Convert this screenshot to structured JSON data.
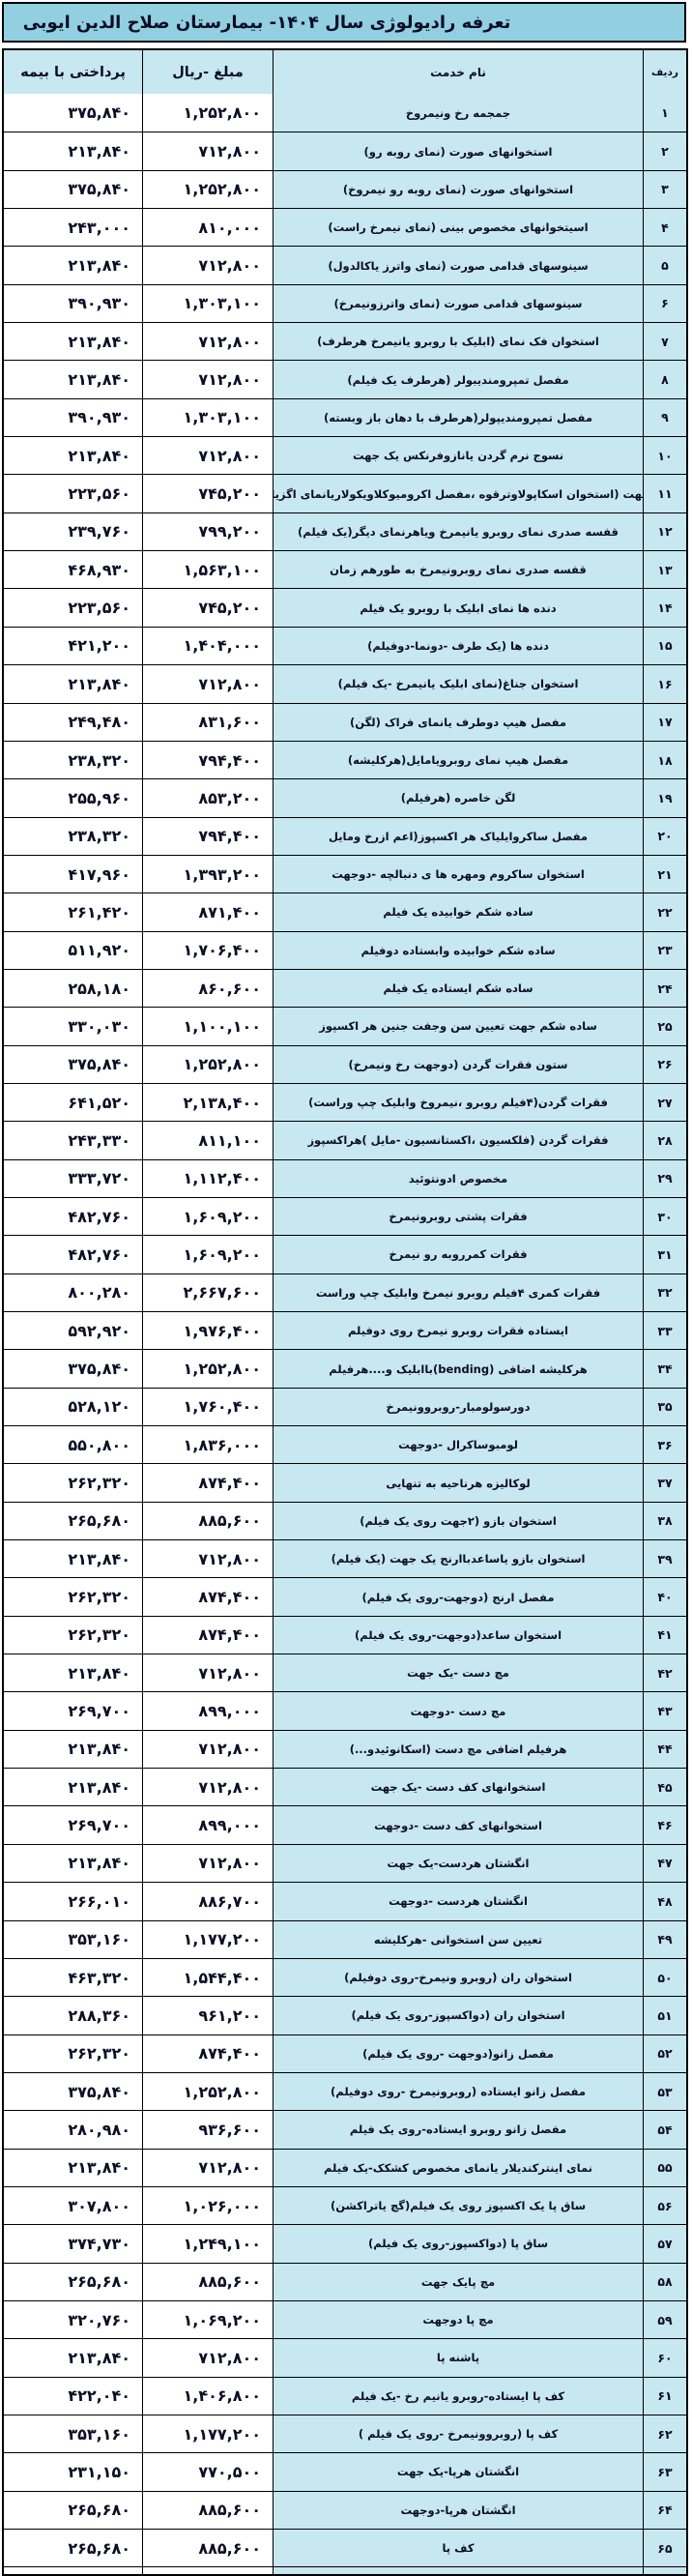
{
  "title": "تعرفه رادیولوژی سال ۱۴۰۴- بیمارستان صلاح الدین ایوبی",
  "columns": {
    "row_no": "ردیف",
    "service": "نام خدمت",
    "amount": "مبلغ -ریال",
    "insurance": "پرداختی با بیمه"
  },
  "colors": {
    "title_bg": "#92cfe0",
    "cell_blue": "#c7e7f1",
    "cell_white": "#ffffff",
    "border": "#000000",
    "text": "#0d0d26"
  },
  "rows": [
    {
      "no": "۱",
      "service": "جمجمه رخ ونیمروخ",
      "amount": "۱,۲۵۲,۸۰۰",
      "insurance": "۳۷۵,۸۴۰"
    },
    {
      "no": "۲",
      "service": "استخوانهای صورت (نمای روبه رو)",
      "amount": "۷۱۲,۸۰۰",
      "insurance": "۲۱۳,۸۴۰"
    },
    {
      "no": "۳",
      "service": "استخوانهای صورت (نمای روبه رو نیمروخ)",
      "amount": "۱,۲۵۲,۸۰۰",
      "insurance": "۳۷۵,۸۴۰"
    },
    {
      "no": "۴",
      "service": "اسیتخوانهای مخصوص بینی (نمای نیمرخ راست)",
      "amount": "۸۱۰,۰۰۰",
      "insurance": "۲۴۳,۰۰۰"
    },
    {
      "no": "۵",
      "service": "سینوسهای قدامی صورت (نمای واترز یاکالدول)",
      "amount": "۷۱۲,۸۰۰",
      "insurance": "۲۱۳,۸۴۰"
    },
    {
      "no": "۶",
      "service": "سینوسهای قدامی صورت (نمای واترزونیمرخ)",
      "amount": "۱,۳۰۳,۱۰۰",
      "insurance": "۳۹۰,۹۳۰"
    },
    {
      "no": "۷",
      "service": "استخوان فک نمای (ابلیک با روبرو یانیمرخ هرطرف)",
      "amount": "۷۱۲,۸۰۰",
      "insurance": "۲۱۳,۸۴۰"
    },
    {
      "no": "۸",
      "service": "مفصل تمپرومندیبولر (هرطرف یک فیلم)",
      "amount": "۷۱۲,۸۰۰",
      "insurance": "۲۱۳,۸۴۰"
    },
    {
      "no": "۹",
      "service": "مفصل تمپرومندیپولر(هرطرف با دهان باز وبسته)",
      "amount": "۱,۳۰۳,۱۰۰",
      "insurance": "۳۹۰,۹۳۰"
    },
    {
      "no": "۱۰",
      "service": "نسوج نرم گردن یانازوفرنکس یک جهت",
      "amount": "۷۱۲,۸۰۰",
      "insurance": "۲۱۳,۸۴۰"
    },
    {
      "no": "۱۱",
      "service": "شانه یک جهت (استخوان اسکاپولاوترقوه ،مفصل اکرومیوکلاویکولاریانمای اگزیلار یانیمرخ",
      "amount": "۷۴۵,۲۰۰",
      "insurance": "۲۲۳,۵۶۰"
    },
    {
      "no": "۱۲",
      "service": "قفسه صدری نمای روبرو یانیمرخ ویاهرنمای دیگر(یک فیلم)",
      "amount": "۷۹۹,۲۰۰",
      "insurance": "۲۳۹,۷۶۰"
    },
    {
      "no": "۱۳",
      "service": "قفسه صدری نمای روبرونیمرخ به طورهم زمان",
      "amount": "۱,۵۶۳,۱۰۰",
      "insurance": "۴۶۸,۹۳۰"
    },
    {
      "no": "۱۴",
      "service": "دنده ها نمای ابلیک با روبرو یک فیلم",
      "amount": "۷۴۵,۲۰۰",
      "insurance": "۲۲۳,۵۶۰"
    },
    {
      "no": "۱۵",
      "service": "دنده ها (یک طرف -دونما-دوفیلم)",
      "amount": "۱,۴۰۴,۰۰۰",
      "insurance": "۴۲۱,۲۰۰"
    },
    {
      "no": "۱۶",
      "service": "استخوان جناغ(نمای ابلیک یانیمرخ -یک فیلم)",
      "amount": "۷۱۲,۸۰۰",
      "insurance": "۲۱۳,۸۴۰"
    },
    {
      "no": "۱۷",
      "service": "مفصل هیپ دوطرف یانمای فراک (لگن)",
      "amount": "۸۳۱,۶۰۰",
      "insurance": "۲۴۹,۴۸۰"
    },
    {
      "no": "۱۸",
      "service": "مفصل هیپ نمای روبرویامایل(هرکلیشه)",
      "amount": "۷۹۴,۴۰۰",
      "insurance": "۲۳۸,۳۲۰"
    },
    {
      "no": "۱۹",
      "service": "لگن خاصره (هرفیلم)",
      "amount": "۸۵۳,۲۰۰",
      "insurance": "۲۵۵,۹۶۰"
    },
    {
      "no": "۲۰",
      "service": "مفصل ساکروایلیاک هر اکسپوز(اعم ازرخ ومایل",
      "amount": "۷۹۴,۴۰۰",
      "insurance": "۲۳۸,۳۲۰"
    },
    {
      "no": "۲۱",
      "service": "استخوان ساکروم ومهره ها ی دنبالچه -دوجهت",
      "amount": "۱,۳۹۳,۲۰۰",
      "insurance": "۴۱۷,۹۶۰"
    },
    {
      "no": "۲۲",
      "service": "ساده شکم خوابیده یک فیلم",
      "amount": "۸۷۱,۴۰۰",
      "insurance": "۲۶۱,۴۲۰"
    },
    {
      "no": "۲۳",
      "service": "ساده شکم خوابیده وابستاده دوفیلم",
      "amount": "۱,۷۰۶,۴۰۰",
      "insurance": "۵۱۱,۹۲۰"
    },
    {
      "no": "۲۴",
      "service": "ساده شکم ایستاده یک فیلم",
      "amount": "۸۶۰,۶۰۰",
      "insurance": "۲۵۸,۱۸۰"
    },
    {
      "no": "۲۵",
      "service": "ساده شکم جهت تعیین سن وجفت جنین هر اکسپوز",
      "amount": "۱,۱۰۰,۱۰۰",
      "insurance": "۳۳۰,۰۳۰"
    },
    {
      "no": "۲۶",
      "service": "ستون فقرات گردن (دوجهت رخ ونیمرخ)",
      "amount": "۱,۲۵۲,۸۰۰",
      "insurance": "۳۷۵,۸۴۰"
    },
    {
      "no": "۲۷",
      "service": "فقرات گردن(۴فیلم روبرو ،نیمروخ وابلیک چپ وراست)",
      "amount": "۲,۱۳۸,۴۰۰",
      "insurance": "۶۴۱,۵۲۰"
    },
    {
      "no": "۲۸",
      "service": "فقرات گردن (فلکسیون ،اکستانسیون -مایل )هراکسپوز",
      "amount": "۸۱۱,۱۰۰",
      "insurance": "۲۴۳,۳۳۰"
    },
    {
      "no": "۲۹",
      "service": "مخصوص ادونتوئید",
      "amount": "۱,۱۱۲,۴۰۰",
      "insurance": "۳۳۳,۷۲۰"
    },
    {
      "no": "۳۰",
      "service": "فقرات پشتی روبرونیمرخ",
      "amount": "۱,۶۰۹,۲۰۰",
      "insurance": "۴۸۲,۷۶۰"
    },
    {
      "no": "۳۱",
      "service": "فقرات کمرروبه رو نیمرخ",
      "amount": "۱,۶۰۹,۲۰۰",
      "insurance": "۴۸۲,۷۶۰"
    },
    {
      "no": "۳۲",
      "service": "فقرات کمری ۴فیلم روبرو نیمرخ وابلیک چپ وراست",
      "amount": "۲,۶۶۷,۶۰۰",
      "insurance": "۸۰۰,۲۸۰"
    },
    {
      "no": "۳۳",
      "service": "ایستاده فقرات روبرو نیمرخ روی دوفیلم",
      "amount": "۱,۹۷۶,۴۰۰",
      "insurance": "۵۹۲,۹۲۰"
    },
    {
      "no": "۳۴",
      "service": "هرکلیشه اضافی (bending)باابلیک و....هرفیلم",
      "amount": "۱,۲۵۲,۸۰۰",
      "insurance": "۳۷۵,۸۴۰"
    },
    {
      "no": "۳۵",
      "service": "دورسولومبار-روبروونیمرخ",
      "amount": "۱,۷۶۰,۴۰۰",
      "insurance": "۵۲۸,۱۲۰"
    },
    {
      "no": "۳۶",
      "service": "لومبوساکرال -دوجهت",
      "amount": "۱,۸۳۶,۰۰۰",
      "insurance": "۵۵۰,۸۰۰"
    },
    {
      "no": "۳۷",
      "service": "لوکالیزه هرناحیه به تنهایی",
      "amount": "۸۷۴,۴۰۰",
      "insurance": "۲۶۲,۳۲۰"
    },
    {
      "no": "۳۸",
      "service": "استخوان بازو (۲جهت روی یک فیلم)",
      "amount": "۸۸۵,۶۰۰",
      "insurance": "۲۶۵,۶۸۰"
    },
    {
      "no": "۳۹",
      "service": "استخوان بازو یاساعدباارنج یک جهت (یک فیلم)",
      "amount": "۷۱۲,۸۰۰",
      "insurance": "۲۱۳,۸۴۰"
    },
    {
      "no": "۴۰",
      "service": "مفصل ارنج (دوجهت-روی یک فیلم)",
      "amount": "۸۷۴,۴۰۰",
      "insurance": "۲۶۲,۳۲۰"
    },
    {
      "no": "۴۱",
      "service": "استخوان ساعد(دوجهت-روی یک فیلم)",
      "amount": "۸۷۴,۴۰۰",
      "insurance": "۲۶۲,۳۲۰"
    },
    {
      "no": "۴۲",
      "service": "مچ دست -یک جهت",
      "amount": "۷۱۲,۸۰۰",
      "insurance": "۲۱۳,۸۴۰"
    },
    {
      "no": "۴۳",
      "service": "مچ دست -دوجهت",
      "amount": "۸۹۹,۰۰۰",
      "insurance": "۲۶۹,۷۰۰"
    },
    {
      "no": "۴۴",
      "service": "هرفیلم اضافی مچ دست (اسکانوئیدو...)",
      "amount": "۷۱۲,۸۰۰",
      "insurance": "۲۱۳,۸۴۰"
    },
    {
      "no": "۴۵",
      "service": "استخوانهای کف دست -یک جهت",
      "amount": "۷۱۲,۸۰۰",
      "insurance": "۲۱۳,۸۴۰"
    },
    {
      "no": "۴۶",
      "service": "استخوانهای کف دست -دوجهت",
      "amount": "۸۹۹,۰۰۰",
      "insurance": "۲۶۹,۷۰۰"
    },
    {
      "no": "۴۷",
      "service": "انگشتان هردست-یک جهت",
      "amount": "۷۱۲,۸۰۰",
      "insurance": "۲۱۳,۸۴۰"
    },
    {
      "no": "۴۸",
      "service": "انگشتان هردست -دوجهت",
      "amount": "۸۸۶,۷۰۰",
      "insurance": "۲۶۶,۰۱۰"
    },
    {
      "no": "۴۹",
      "service": "تعیین سن استخوانی -هرکلیشه",
      "amount": "۱,۱۷۷,۲۰۰",
      "insurance": "۳۵۳,۱۶۰"
    },
    {
      "no": "۵۰",
      "service": "استخوان ران (روبرو ونیمرخ-روی دوفیلم)",
      "amount": "۱,۵۴۴,۴۰۰",
      "insurance": "۴۶۳,۳۲۰"
    },
    {
      "no": "۵۱",
      "service": "استخوان ران (دواکسپوز-روی یک فیلم)",
      "amount": "۹۶۱,۲۰۰",
      "insurance": "۲۸۸,۳۶۰"
    },
    {
      "no": "۵۲",
      "service": "مفصل زانو(دوجهت -روی یک فیلم)",
      "amount": "۸۷۴,۴۰۰",
      "insurance": "۲۶۲,۳۲۰"
    },
    {
      "no": "۵۳",
      "service": "مفصل زانو ایستاده (روبرونیمرخ -روی دوفیلم)",
      "amount": "۱,۲۵۲,۸۰۰",
      "insurance": "۳۷۵,۸۴۰"
    },
    {
      "no": "۵۴",
      "service": "مفصل زانو روبرو ایستاده-روی یک فیلم",
      "amount": "۹۳۶,۶۰۰",
      "insurance": "۲۸۰,۹۸۰"
    },
    {
      "no": "۵۵",
      "service": "نمای اینترکندیلار یانمای مخصوص کشکک-یک فیلم",
      "amount": "۷۱۲,۸۰۰",
      "insurance": "۲۱۳,۸۴۰"
    },
    {
      "no": "۵۶",
      "service": "ساق پا یک اکسپوز روی یک فیلم(گچ یاتراکشن)",
      "amount": "۱,۰۲۶,۰۰۰",
      "insurance": "۳۰۷,۸۰۰"
    },
    {
      "no": "۵۷",
      "service": "ساق پا (دواکسپوز-روی یک فیلم)",
      "amount": "۱,۲۴۹,۱۰۰",
      "insurance": "۳۷۴,۷۳۰"
    },
    {
      "no": "۵۸",
      "service": "مچ پایک جهت",
      "amount": "۸۸۵,۶۰۰",
      "insurance": "۲۶۵,۶۸۰"
    },
    {
      "no": "۵۹",
      "service": "مچ پا دوجهت",
      "amount": "۱,۰۶۹,۲۰۰",
      "insurance": "۳۲۰,۷۶۰"
    },
    {
      "no": "۶۰",
      "service": "پاشنه پا",
      "amount": "۷۱۲,۸۰۰",
      "insurance": "۲۱۳,۸۴۰"
    },
    {
      "no": "۶۱",
      "service": "کف پا ایستاده-روبرو یانیم رخ -یک فیلم",
      "amount": "۱,۴۰۶,۸۰۰",
      "insurance": "۴۲۲,۰۴۰"
    },
    {
      "no": "۶۲",
      "service": "کف پا (روبروونیمرخ -روی یک فیلم )",
      "amount": "۱,۱۷۷,۲۰۰",
      "insurance": "۳۵۳,۱۶۰"
    },
    {
      "no": "۶۳",
      "service": "انگشتان هرپا-یک جهت",
      "amount": "۷۷۰,۵۰۰",
      "insurance": "۲۳۱,۱۵۰"
    },
    {
      "no": "۶۴",
      "service": "انگشتان هرپا-دوجهت",
      "amount": "۸۸۵,۶۰۰",
      "insurance": "۲۶۵,۶۸۰"
    },
    {
      "no": "۶۵",
      "service": "کف پا",
      "amount": "۸۸۵,۶۰۰",
      "insurance": "۲۶۵,۶۸۰"
    }
  ]
}
